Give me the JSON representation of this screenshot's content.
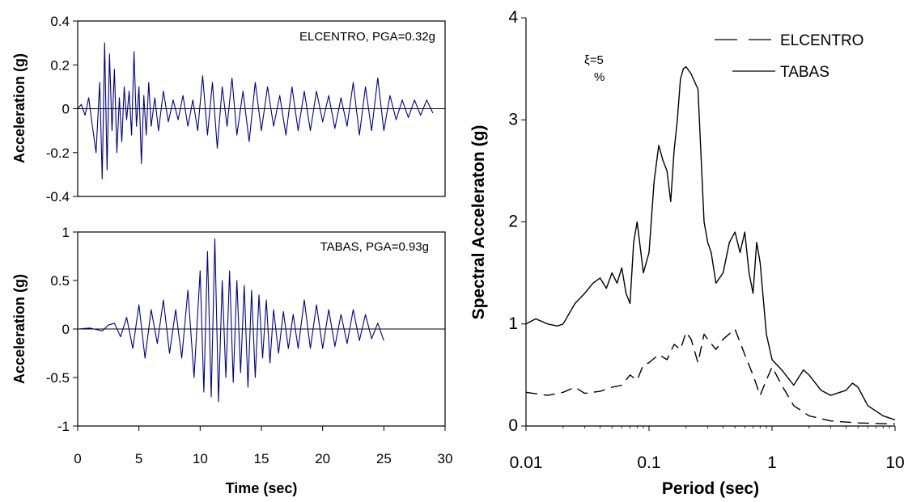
{
  "charts": [
    {
      "id": "p1",
      "type": "line",
      "color": "#00008b",
      "ylabel": "Acceleration (g)",
      "xlim": [
        0,
        30
      ],
      "ylim": [
        -0.4,
        0.4
      ],
      "yticks": [
        "0.4",
        "0.2",
        "0",
        "-0.2",
        "-0.4"
      ],
      "ytick_values": [
        0.4,
        0.2,
        0,
        -0.2,
        -0.4
      ],
      "annotation": "ELCENTRO, PGA=0.32g",
      "series": [
        {
          "x": [
            0,
            0.3,
            0.6,
            0.9,
            1.2,
            1.5,
            1.8,
            2.0,
            2.2,
            2.4,
            2.6,
            2.8,
            3.0,
            3.2,
            3.4,
            3.6,
            3.8,
            4.0,
            4.2,
            4.4,
            4.6,
            4.8,
            5.0,
            5.2,
            5.4,
            5.6,
            5.8,
            6.0,
            6.3,
            6.6,
            7.0,
            7.4,
            7.8,
            8.2,
            8.6,
            9.0,
            9.4,
            9.8,
            10.2,
            10.6,
            11.0,
            11.4,
            11.8,
            12.2,
            12.6,
            13.0,
            13.5,
            14.0,
            14.5,
            15.0,
            15.5,
            16.0,
            16.5,
            17.0,
            17.5,
            18.0,
            18.5,
            19.0,
            19.5,
            20.0,
            20.5,
            21.0,
            21.5,
            22.0,
            22.5,
            23.0,
            23.5,
            24.0,
            24.5,
            25.0,
            25.5,
            26.0,
            26.5,
            27.0,
            27.5,
            28.0,
            28.5,
            29.0
          ],
          "y": [
            0,
            0.02,
            -0.03,
            0.05,
            -0.08,
            -0.2,
            0.12,
            -0.32,
            0.3,
            -0.28,
            0.25,
            -0.1,
            0.18,
            -0.2,
            0.05,
            -0.15,
            0.1,
            -0.05,
            0.08,
            -0.12,
            0.26,
            -0.08,
            0.1,
            -0.25,
            0.06,
            -0.12,
            0.12,
            -0.08,
            0.05,
            -0.1,
            0.08,
            -0.06,
            0.04,
            -0.05,
            0.06,
            -0.08,
            0.04,
            -0.1,
            0.15,
            -0.12,
            0.12,
            -0.18,
            0.1,
            -0.08,
            0.14,
            -0.12,
            0.08,
            -0.15,
            0.12,
            -0.1,
            0.1,
            -0.08,
            0.06,
            -0.12,
            0.1,
            -0.1,
            0.08,
            -0.1,
            0.08,
            -0.06,
            0.06,
            -0.09,
            0.05,
            -0.08,
            0.12,
            -0.12,
            0.1,
            -0.1,
            0.14,
            -0.1,
            0.06,
            -0.05,
            0.04,
            -0.04,
            0.04,
            -0.03,
            0.04,
            -0.02
          ]
        }
      ]
    },
    {
      "id": "p2",
      "type": "line",
      "color": "#00008b",
      "ylabel": "Acceleration (g)",
      "xlabel": "Time (sec)",
      "xlim": [
        0,
        30
      ],
      "ylim": [
        -1,
        1
      ],
      "yticks": [
        "1",
        "0.5",
        "0",
        "-0.5",
        "-1"
      ],
      "ytick_values": [
        1,
        0.5,
        0,
        -0.5,
        -1
      ],
      "xticks": [
        "0",
        "5",
        "10",
        "15",
        "20",
        "25",
        "30"
      ],
      "xtick_values": [
        0,
        5,
        10,
        15,
        20,
        25,
        30
      ],
      "annotation": "TABAS, PGA=0.93g",
      "series": [
        {
          "x": [
            0,
            1.0,
            2.0,
            2.5,
            3.0,
            3.5,
            4.0,
            4.5,
            5.0,
            5.5,
            6.0,
            6.5,
            7.0,
            7.5,
            8.0,
            8.5,
            9.0,
            9.5,
            10.0,
            10.3,
            10.6,
            10.9,
            11.2,
            11.5,
            11.8,
            12.1,
            12.4,
            12.7,
            13.0,
            13.3,
            13.6,
            13.9,
            14.2,
            14.5,
            14.8,
            15.1,
            15.4,
            15.7,
            16.0,
            16.4,
            16.8,
            17.2,
            17.6,
            18.0,
            18.5,
            19.0,
            19.5,
            20.0,
            20.5,
            21.0,
            21.5,
            22.0,
            22.5,
            23.0,
            23.5,
            24.0,
            24.5,
            25.0
          ],
          "y": [
            0,
            0.01,
            -0.02,
            0.04,
            0.06,
            -0.08,
            0.12,
            -0.2,
            0.25,
            -0.3,
            0.2,
            -0.15,
            0.3,
            -0.25,
            0.2,
            -0.3,
            0.4,
            -0.5,
            0.6,
            -0.65,
            0.8,
            -0.7,
            0.93,
            -0.75,
            0.5,
            -0.5,
            0.6,
            -0.55,
            0.5,
            -0.45,
            0.45,
            -0.6,
            0.4,
            -0.5,
            0.35,
            -0.3,
            0.3,
            -0.35,
            0.2,
            -0.25,
            0.18,
            -0.2,
            0.15,
            -0.2,
            0.3,
            -0.2,
            0.25,
            -0.2,
            0.2,
            -0.18,
            0.15,
            -0.15,
            0.2,
            -0.12,
            0.15,
            -0.1,
            0.06,
            -0.12
          ]
        }
      ]
    },
    {
      "id": "p3",
      "type": "line",
      "xlabel": "Period (sec)",
      "ylabel": "Spectral Acceleraton (g)",
      "xscale": "log",
      "xlim": [
        0.01,
        10
      ],
      "ylim": [
        0,
        4
      ],
      "xticks": [
        "0.01",
        "0.1",
        "1",
        "10"
      ],
      "xtick_values": [
        0.01,
        0.1,
        1,
        10
      ],
      "yticks": [
        "4",
        "3",
        "2",
        "1",
        "0"
      ],
      "ytick_values": [
        4,
        3,
        2,
        1,
        0
      ],
      "annotation_line1": "ξ=5",
      "annotation_line2": "%",
      "legend_position": "top-right",
      "series": [
        {
          "name": "ELCENTRO",
          "style": "dashed",
          "x": [
            0.01,
            0.015,
            0.02,
            0.025,
            0.03,
            0.04,
            0.05,
            0.06,
            0.07,
            0.08,
            0.09,
            0.1,
            0.12,
            0.14,
            0.16,
            0.18,
            0.2,
            0.22,
            0.25,
            0.28,
            0.3,
            0.35,
            0.4,
            0.5,
            0.6,
            0.7,
            0.8,
            0.9,
            1.0,
            1.2,
            1.5,
            2.0,
            3.0,
            5.0,
            10.0
          ],
          "y": [
            0.33,
            0.3,
            0.33,
            0.38,
            0.32,
            0.34,
            0.38,
            0.4,
            0.5,
            0.45,
            0.6,
            0.62,
            0.7,
            0.65,
            0.8,
            0.75,
            0.92,
            0.85,
            0.62,
            0.9,
            0.85,
            0.75,
            0.85,
            0.95,
            0.7,
            0.5,
            0.3,
            0.45,
            0.58,
            0.4,
            0.2,
            0.1,
            0.05,
            0.03,
            0.02
          ]
        },
        {
          "name": "TABAS",
          "style": "solid",
          "x": [
            0.01,
            0.012,
            0.015,
            0.018,
            0.02,
            0.025,
            0.03,
            0.035,
            0.04,
            0.045,
            0.05,
            0.055,
            0.06,
            0.065,
            0.07,
            0.075,
            0.08,
            0.09,
            0.1,
            0.11,
            0.12,
            0.13,
            0.14,
            0.15,
            0.16,
            0.17,
            0.18,
            0.19,
            0.2,
            0.22,
            0.25,
            0.28,
            0.3,
            0.32,
            0.35,
            0.4,
            0.45,
            0.5,
            0.55,
            0.6,
            0.65,
            0.7,
            0.75,
            0.8,
            0.9,
            1.0,
            1.2,
            1.5,
            1.8,
            2.0,
            2.5,
            3.0,
            4.0,
            4.5,
            5.0,
            6.0,
            8.0,
            10.0
          ],
          "y": [
            1.0,
            1.05,
            1.0,
            0.98,
            1.0,
            1.2,
            1.3,
            1.4,
            1.45,
            1.35,
            1.5,
            1.4,
            1.55,
            1.3,
            1.2,
            1.8,
            2.0,
            1.5,
            1.7,
            2.4,
            2.75,
            2.6,
            2.5,
            2.2,
            2.7,
            3.0,
            3.4,
            3.5,
            3.52,
            3.45,
            3.3,
            2.0,
            1.8,
            1.7,
            1.4,
            1.5,
            1.8,
            1.9,
            1.7,
            1.9,
            1.5,
            1.3,
            1.8,
            1.6,
            0.9,
            0.65,
            0.55,
            0.4,
            0.55,
            0.5,
            0.35,
            0.3,
            0.35,
            0.42,
            0.38,
            0.2,
            0.1,
            0.06
          ]
        }
      ]
    }
  ]
}
